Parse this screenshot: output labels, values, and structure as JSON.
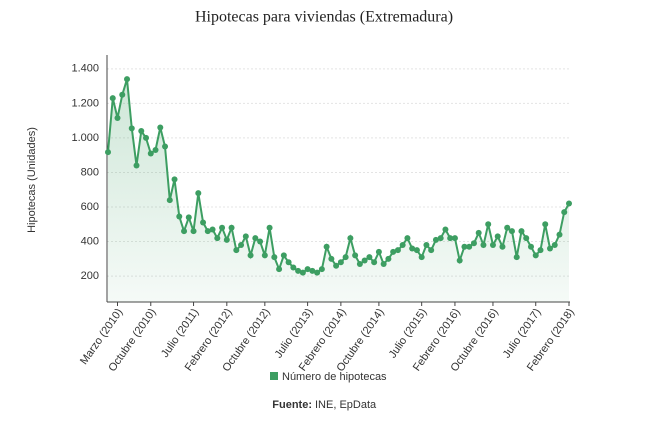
{
  "chart_data": {
    "type": "line",
    "title": "Hipotecas para viviendas (Extremadura)",
    "y_label": "Hipotecas (Unidades)",
    "source_label": "Fuente:",
    "source": "INE, EpData",
    "categories": [
      null,
      null,
      "Marzo (2010)",
      null,
      null,
      null,
      null,
      null,
      null,
      "Octubre (2010)",
      null,
      null,
      null,
      null,
      null,
      null,
      null,
      null,
      "Julio (2011)",
      null,
      null,
      null,
      null,
      null,
      null,
      "Febrero (2012)",
      null,
      null,
      null,
      null,
      null,
      null,
      null,
      "Octubre (2012)",
      null,
      null,
      null,
      null,
      null,
      null,
      null,
      null,
      "Julio (2013)",
      null,
      null,
      null,
      null,
      null,
      null,
      "Febrero (2014)",
      null,
      null,
      null,
      null,
      null,
      null,
      null,
      "Octubre (2014)",
      null,
      null,
      null,
      null,
      null,
      null,
      null,
      null,
      "Julio (2015)",
      null,
      null,
      null,
      null,
      null,
      null,
      "Febrero (2016)",
      null,
      null,
      null,
      null,
      null,
      null,
      null,
      "Octubre (2016)",
      null,
      null,
      null,
      null,
      null,
      null,
      null,
      null,
      "Julio (2017)",
      null,
      null,
      null,
      null,
      null,
      null,
      "Febrero (2018)"
    ],
    "series": [
      {
        "name": "Número de hipotecas",
        "color": "#3d9e62",
        "values": [
          918,
          1230,
          1115,
          1250,
          1340,
          1055,
          840,
          1040,
          1000,
          910,
          930,
          1060,
          950,
          640,
          760,
          545,
          460,
          540,
          460,
          680,
          510,
          460,
          470,
          420,
          480,
          410,
          480,
          350,
          380,
          430,
          320,
          420,
          400,
          320,
          480,
          310,
          240,
          320,
          280,
          250,
          230,
          220,
          240,
          230,
          220,
          240,
          370,
          300,
          260,
          280,
          310,
          420,
          320,
          270,
          290,
          310,
          280,
          340,
          270,
          300,
          340,
          350,
          380,
          420,
          360,
          350,
          310,
          380,
          350,
          410,
          420,
          470,
          420,
          420,
          290,
          370,
          370,
          390,
          450,
          380,
          500,
          380,
          430,
          370,
          480,
          460,
          310,
          460,
          420,
          370,
          320,
          350,
          500,
          360,
          380,
          440,
          570,
          620
        ]
      }
    ],
    "ylim": [
      50,
      1480
    ],
    "yticks": [
      200,
      400,
      600,
      800,
      {
        "value": 1000,
        "label": "1.000"
      },
      {
        "value": 1200,
        "label": "1.200"
      },
      {
        "value": 1400,
        "label": "1.400"
      }
    ],
    "grid": true,
    "legend": "bottom"
  }
}
